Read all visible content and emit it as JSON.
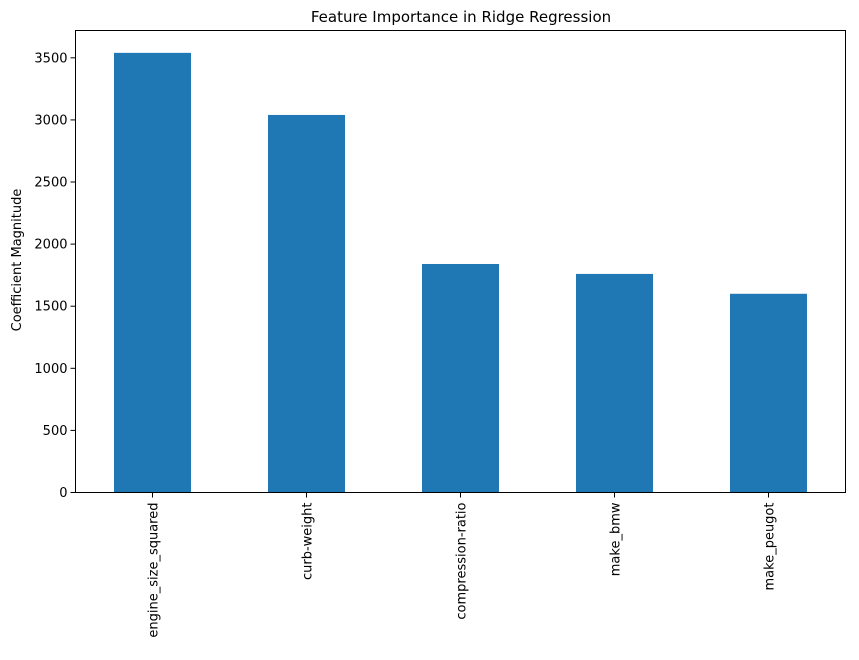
{
  "chart_data": {
    "type": "bar",
    "title": "Feature Importance in Ridge Regression",
    "xlabel": "",
    "ylabel": "Coefficient Magnitude",
    "categories": [
      "engine_size_squared",
      "curb-weight",
      "compression-ratio",
      "make_bmw",
      "make_peugot"
    ],
    "values": [
      3540,
      3040,
      1840,
      1760,
      1600
    ],
    "ylim": [
      0,
      3720
    ],
    "yticks": [
      0,
      500,
      1000,
      1500,
      2000,
      2500,
      3000,
      3500
    ],
    "ytick_labels": [
      "0",
      "500",
      "1000",
      "1500",
      "2000",
      "2500",
      "3000",
      "3500"
    ],
    "bar_color": "#1f77b4",
    "grid": false,
    "legend": "none"
  }
}
